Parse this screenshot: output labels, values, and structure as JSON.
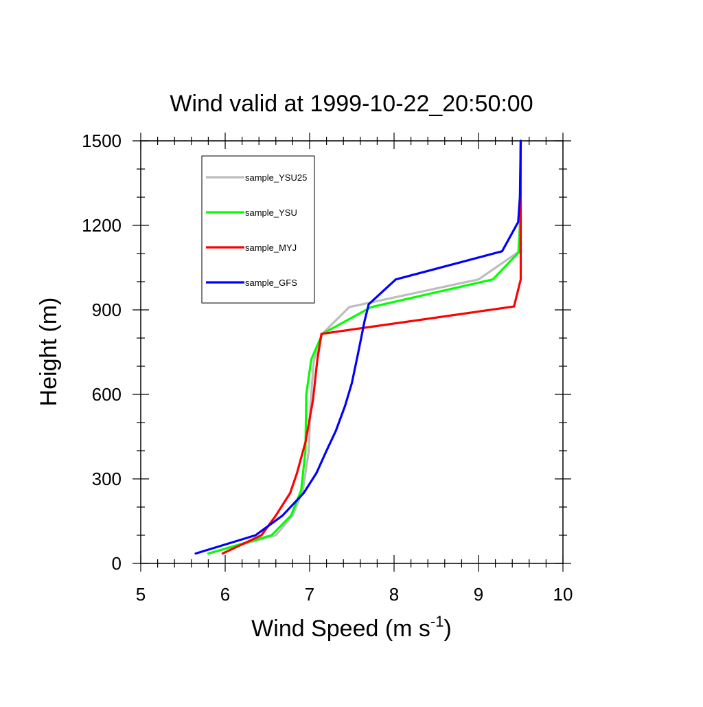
{
  "chart_data": {
    "type": "line",
    "title": "Wind valid at 1999-10-22_20:50:00",
    "xlabel": "Wind Speed (m s",
    "xlabel_superscript": "-1",
    "xlabel_close": ")",
    "ylabel": "Height (m)",
    "xlim": [
      5,
      10
    ],
    "ylim": [
      0,
      1500
    ],
    "x_ticks": [
      "5",
      "6",
      "7",
      "8",
      "9",
      "10"
    ],
    "y_ticks": [
      "0",
      "300",
      "600",
      "900",
      "1200",
      "1500"
    ],
    "grid": false,
    "legend_position": "top-left",
    "series": [
      {
        "name": "sample_YSU25",
        "color": "#bdbdbd",
        "points": [
          [
            5.8,
            35
          ],
          [
            6.6,
            100
          ],
          [
            6.8,
            170
          ],
          [
            6.92,
            260
          ],
          [
            6.99,
            400
          ],
          [
            7.01,
            560
          ],
          [
            7.05,
            720
          ],
          [
            7.15,
            815
          ],
          [
            7.47,
            910
          ],
          [
            9.0,
            1008
          ],
          [
            9.47,
            1105
          ],
          [
            9.49,
            1200
          ],
          [
            9.5,
            1500
          ]
        ]
      },
      {
        "name": "sample_YSU",
        "color": "#00ff00",
        "points": [
          [
            5.8,
            35
          ],
          [
            6.55,
            100
          ],
          [
            6.78,
            170
          ],
          [
            6.9,
            260
          ],
          [
            6.95,
            400
          ],
          [
            6.96,
            600
          ],
          [
            7.02,
            725
          ],
          [
            7.15,
            815
          ],
          [
            7.73,
            910
          ],
          [
            9.17,
            1008
          ],
          [
            9.48,
            1105
          ],
          [
            9.49,
            1200
          ],
          [
            9.5,
            1500
          ]
        ]
      },
      {
        "name": "sample_MYJ",
        "color": "#ff0000",
        "points": [
          [
            5.97,
            35
          ],
          [
            6.43,
            100
          ],
          [
            6.6,
            170
          ],
          [
            6.77,
            250
          ],
          [
            6.85,
            320
          ],
          [
            6.95,
            430
          ],
          [
            7.04,
            580
          ],
          [
            7.09,
            720
          ],
          [
            7.14,
            815
          ],
          [
            9.42,
            912
          ],
          [
            9.5,
            1008
          ],
          [
            9.5,
            1200
          ],
          [
            9.5,
            1500
          ]
        ]
      },
      {
        "name": "sample_GFS",
        "color": "#0000ff",
        "points": [
          [
            5.65,
            35
          ],
          [
            6.36,
            100
          ],
          [
            6.68,
            170
          ],
          [
            6.93,
            250
          ],
          [
            7.08,
            320
          ],
          [
            7.2,
            400
          ],
          [
            7.31,
            470
          ],
          [
            7.42,
            560
          ],
          [
            7.5,
            640
          ],
          [
            7.57,
            740
          ],
          [
            7.65,
            860
          ],
          [
            7.7,
            920
          ],
          [
            8.02,
            1008
          ],
          [
            9.28,
            1108
          ],
          [
            9.47,
            1212
          ],
          [
            9.49,
            1300
          ],
          [
            9.5,
            1500
          ]
        ]
      }
    ]
  }
}
